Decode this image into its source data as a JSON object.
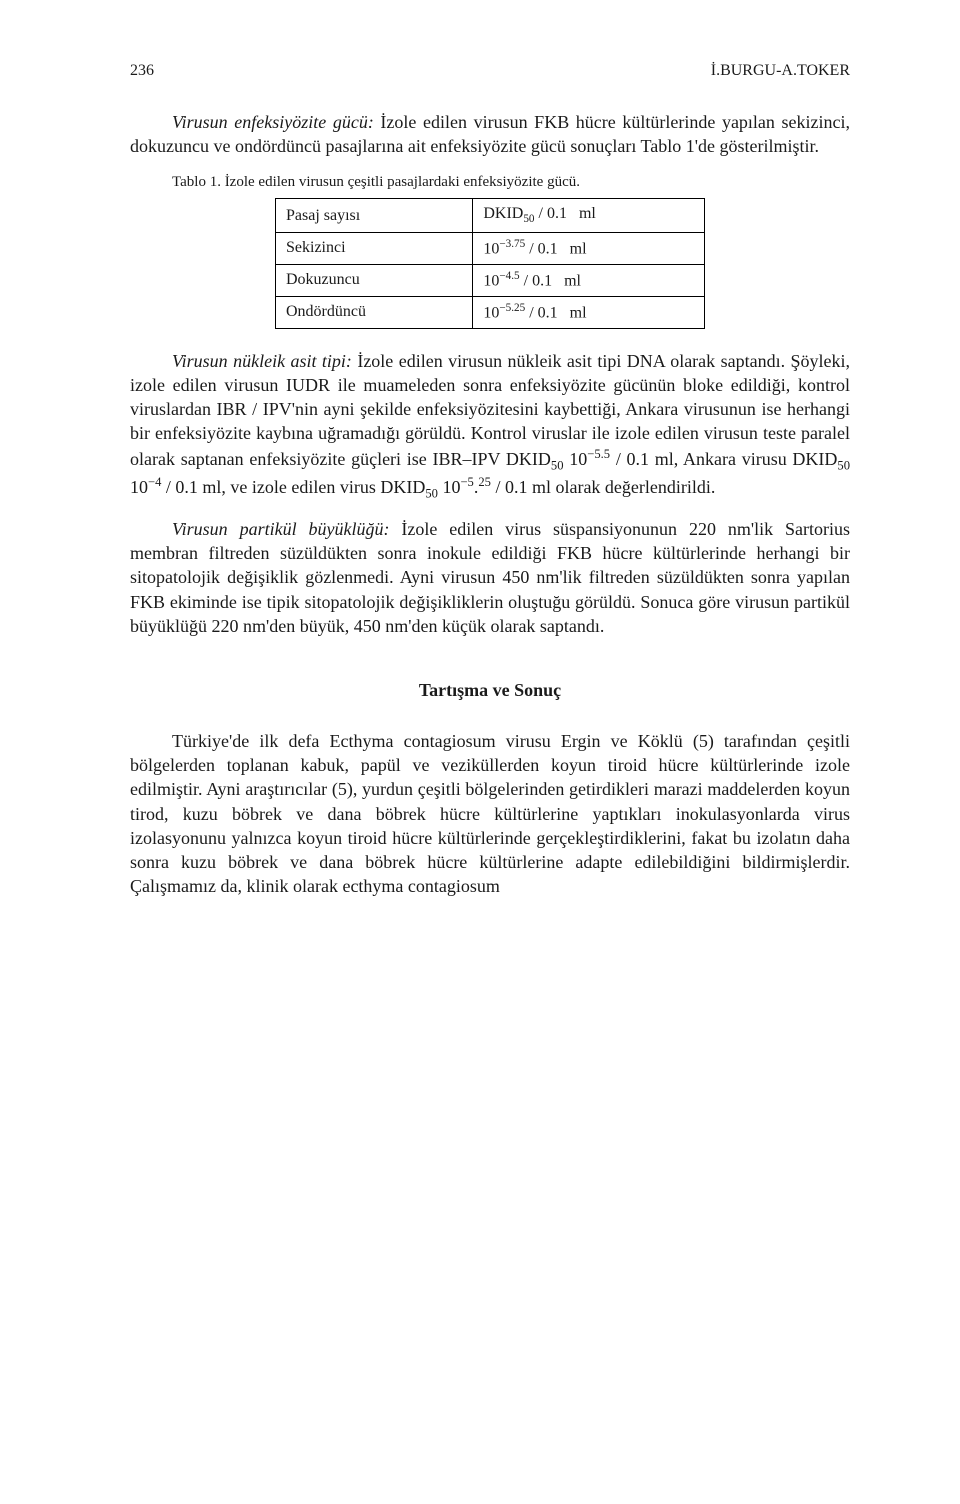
{
  "page_number": "236",
  "running_head": "İ.BURGU-A.TOKER",
  "p1_lead_italic": "Virusun enfeksiyözite gücü:",
  "p1_rest": " İzole edilen virusun FKB hücre kültürlerinde yapılan sekizinci, dokuzuncu ve ondördüncü pasajlarına ait enfeksiyözite gücü sonuçları Tablo 1'de gösterilmiştir.",
  "table_caption": "Tablo 1. İzole edilen virusun çeşitli pasajlardaki enfeksiyözite gücü.",
  "table": {
    "rows": [
      {
        "label": "Pasaj sayısı",
        "value_html": "DKID<sub>50</sub> / 0.1&nbsp;&nbsp;&nbsp;ml"
      },
      {
        "label": "Sekizinci",
        "value_html": "10<sup>−3.75</sup> / 0.1&nbsp;&nbsp;&nbsp;ml"
      },
      {
        "label": "Dokuzuncu",
        "value_html": "10<sup>−4.5</sup> / 0.1&nbsp;&nbsp;&nbsp;ml"
      },
      {
        "label": "Ondördüncü",
        "value_html": "10<sup>−5.25</sup> / 0.1&nbsp;&nbsp;&nbsp;ml"
      }
    ]
  },
  "p2_lead_italic": "Virusun nükleik asit tipi:",
  "p2_rest_html": " İzole edilen virusun nükleik asit tipi DNA olarak saptandı. Şöyleki, izole edilen virusun IUDR ile muameleden sonra enfeksiyözite gücünün bloke edildiği, kontrol viruslardan IBR / IPV'nin ayni şekilde enfeksiyözitesini kaybettiği, Ankara virusunun ise herhangi bir enfeksiyözite kaybına uğramadığı görüldü. Kontrol viruslar ile izole edilen virusun teste paralel olarak saptanan enfeksiyözite güçleri ise IBR–IPV DKID<sub>50</sub> 10<sup>−5.5</sup> / 0.1 ml, Ankara virusu DKID<sub>50</sub> 10<sup>−4</sup> / 0.1 ml, ve izole edilen virus DKID<sub>50</sub> 10<sup>−5</sup>.<sup>25</sup> / 0.1 ml olarak değerlendirildi.",
  "p3_lead_italic": "Virusun partikül büyüklüğü:",
  "p3_rest": " İzole edilen virus süspansiyonunun 220 nm'lik Sartorius membran filtreden süzüldükten sonra inokule edildiği FKB hücre kültürlerinde herhangi bir sitopatolojik değişiklik gözlenmedi. Ayni virusun 450 nm'lik filtreden süzüldükten sonra yapılan FKB ekiminde ise tipik sitopatolojik değişikliklerin oluştuğu görüldü. Sonuca göre virusun partikül büyüklüğü 220 nm'den büyük, 450 nm'den küçük olarak saptandı.",
  "section_title": "Tartışma ve Sonuç",
  "p4_text": "Türkiye'de ilk defa Ecthyma contagiosum virusu Ergin ve Köklü (5) tarafından çeşitli bölgelerden toplanan kabuk, papül ve veziküllerden koyun tiroid hücre kültürlerinde izole edilmiştir. Ayni araştırıcılar (5), yurdun çeşitli bölgelerinden getirdikleri marazi maddelerden koyun tirod, kuzu böbrek ve dana böbrek hücre kültürlerine yaptıkları inokulasyonlarda virus izolasyonunu yalnızca koyun tiroid hücre kültürlerinde gerçekleştirdiklerini, fakat bu izolatın daha sonra kuzu böbrek ve dana böbrek hücre kültürlerine adapte edilebildiğini bildirmişlerdir. Çalışmamız da, klinik olarak ecthyma contagiosum"
}
